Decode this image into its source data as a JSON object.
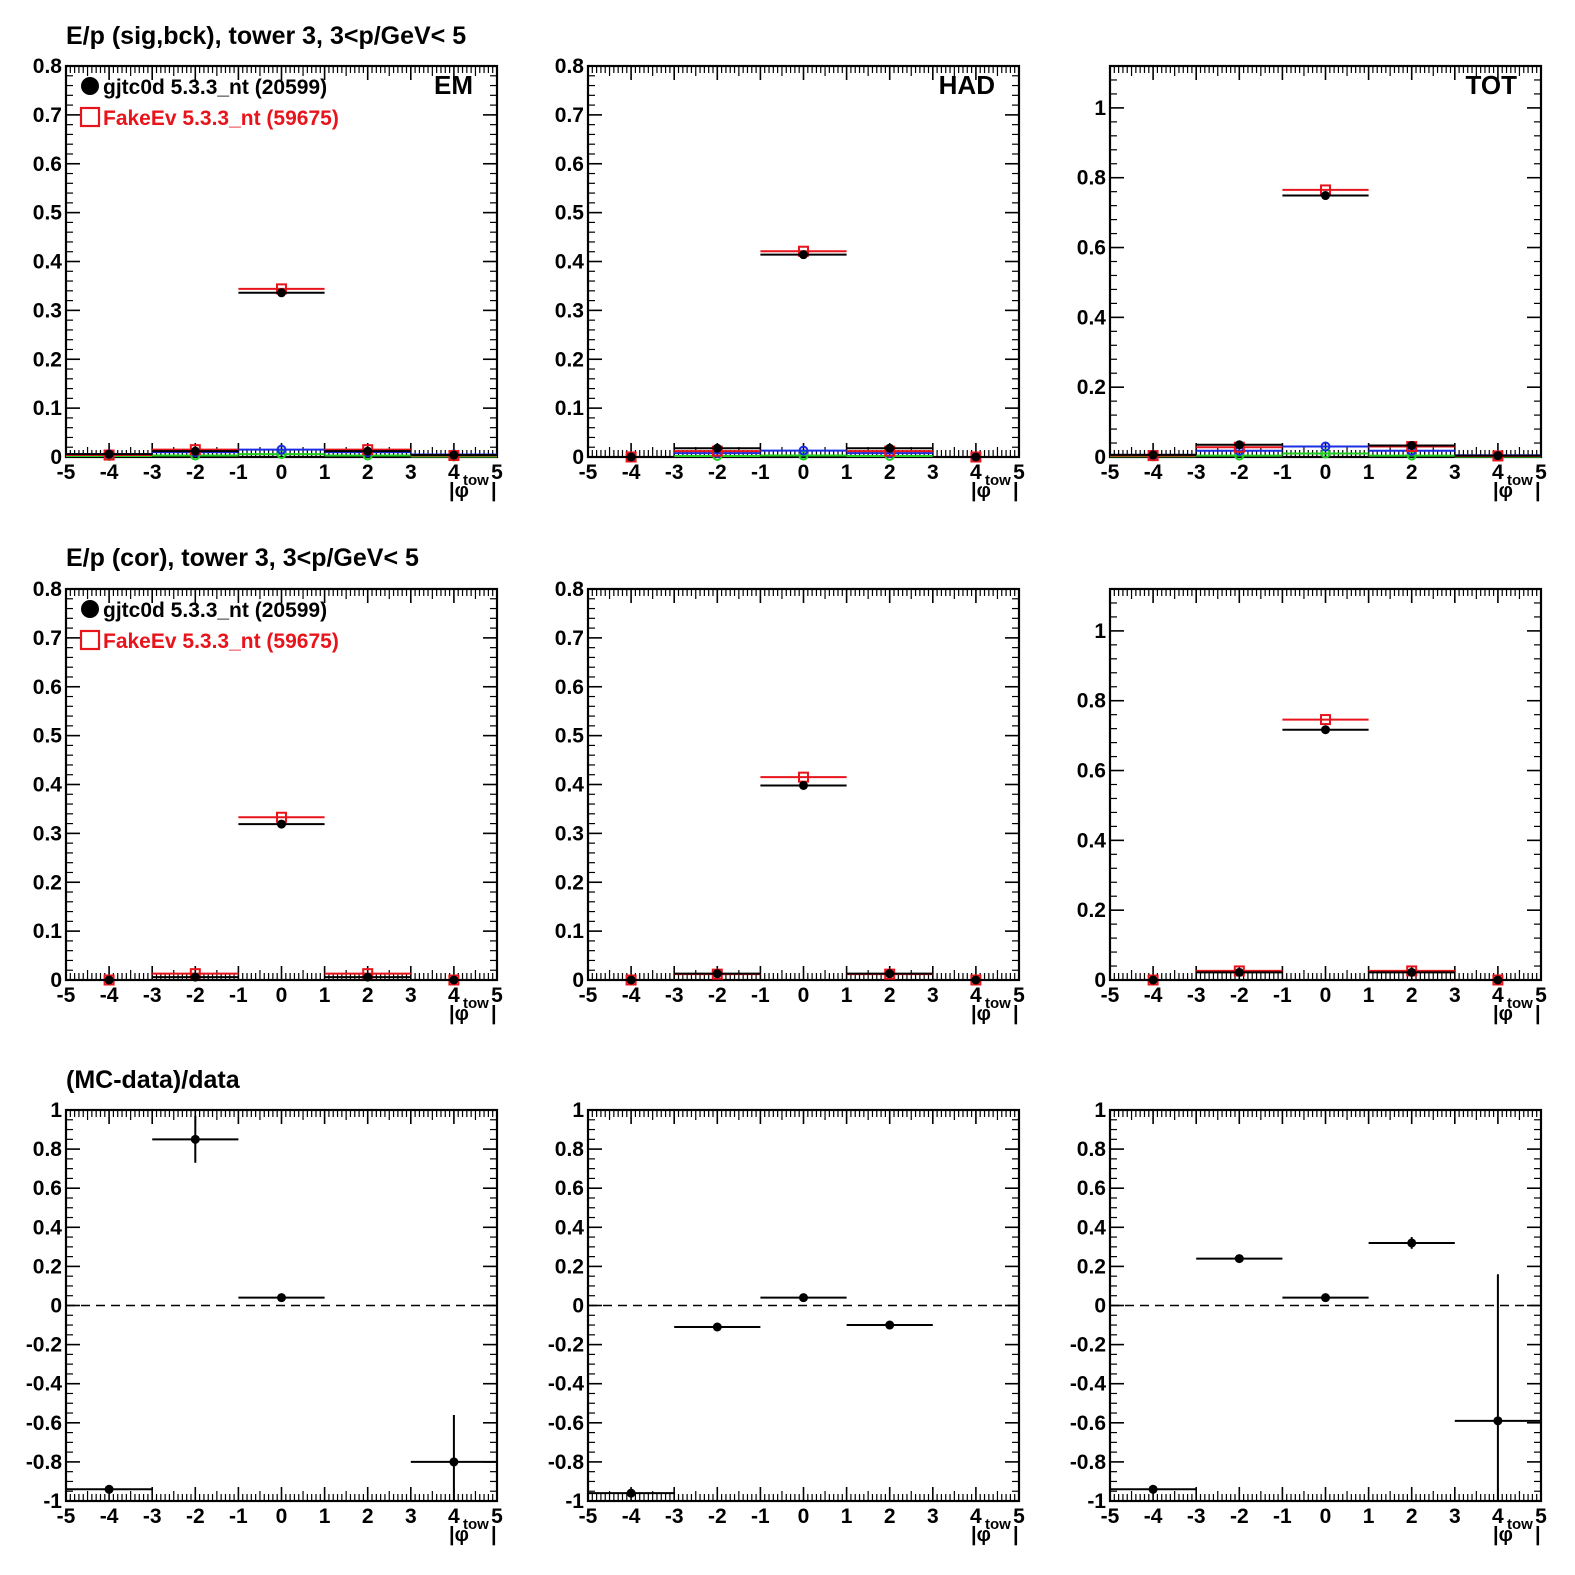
{
  "colors": {
    "data": "#000000",
    "mc": "#e8141b",
    "blue": "#1a2ee6",
    "green": "#20d020"
  },
  "axis_label_main": "|φ",
  "axis_label_sub": "tow",
  "axis_label_end": "|",
  "row_titles": [
    "E/p (sig,bck), tower 3,  3<p/GeV< 5",
    "E/p (cor), tower 3,  3<p/GeV< 5",
    "(MC-data)/data"
  ],
  "legend": [
    {
      "label": "gjtc0d 5.3.3_nt (20599)",
      "marker": "filled-circle"
    },
    {
      "label": "FakeEv 5.3.3_nt (59675)",
      "marker": "open-square"
    }
  ],
  "chart_data": [
    {
      "type": "scatter",
      "row": 0,
      "col": 0,
      "label": "EM",
      "legend": true,
      "xlim": [
        -5,
        5
      ],
      "ylim": [
        0,
        0.8
      ],
      "yticks": [
        "0",
        "0.1",
        "0.2",
        "0.3",
        "0.4",
        "0.5",
        "0.6",
        "0.7",
        "0.8"
      ],
      "xticks": [
        "-5",
        "-4",
        "-3",
        "-2",
        "-1",
        "0",
        "1",
        "2",
        "3",
        "4",
        "5"
      ],
      "bins": [
        [
          -5,
          -3
        ],
        [
          -3,
          -1
        ],
        [
          -1,
          1
        ],
        [
          1,
          3
        ],
        [
          3,
          5
        ]
      ],
      "series": [
        {
          "key": "data",
          "values": [
            0.006,
            0.012,
            0.336,
            0.012,
            0.004
          ]
        },
        {
          "key": "mc",
          "values": [
            0.004,
            0.015,
            0.344,
            0.015,
            0.003
          ]
        },
        {
          "key": "blue",
          "values": [
            0.006,
            0.01,
            0.015,
            0.01,
            0.005
          ]
        },
        {
          "key": "green",
          "values": [
            0.002,
            0.003,
            0.006,
            0.003,
            0.001
          ]
        }
      ]
    },
    {
      "type": "scatter",
      "row": 0,
      "col": 1,
      "label": "HAD",
      "legend": false,
      "xlim": [
        -5,
        5
      ],
      "ylim": [
        0,
        0.8
      ],
      "yticks": [
        "0",
        "0.1",
        "0.2",
        "0.3",
        "0.4",
        "0.5",
        "0.6",
        "0.7",
        "0.8"
      ],
      "xticks": [
        "-5",
        "-4",
        "-3",
        "-2",
        "-1",
        "0",
        "1",
        "2",
        "3",
        "4",
        "5"
      ],
      "bins": [
        [
          -5,
          -3
        ],
        [
          -3,
          -1
        ],
        [
          -1,
          1
        ],
        [
          1,
          3
        ],
        [
          3,
          5
        ]
      ],
      "series": [
        {
          "key": "data",
          "values": [
            0.0,
            0.018,
            0.414,
            0.018,
            0.0
          ]
        },
        {
          "key": "mc",
          "values": [
            0.0,
            0.012,
            0.421,
            0.012,
            0.0
          ]
        },
        {
          "key": "blue",
          "values": [
            0.0,
            0.008,
            0.013,
            0.008,
            0.0
          ]
        },
        {
          "key": "green",
          "values": [
            0.0,
            0.002,
            0.003,
            0.002,
            0.0
          ]
        }
      ]
    },
    {
      "type": "scatter",
      "row": 0,
      "col": 2,
      "label": "TOT",
      "legend": false,
      "xlim": [
        -5,
        5
      ],
      "ylim": [
        0,
        1.12
      ],
      "yticks": [
        "0",
        "0.2",
        "0.4",
        "0.6",
        "0.8",
        "1"
      ],
      "xticks": [
        "-5",
        "-4",
        "-3",
        "-2",
        "-1",
        "0",
        "1",
        "2",
        "3",
        "4",
        "5"
      ],
      "bins": [
        [
          -5,
          -3
        ],
        [
          -3,
          -1
        ],
        [
          -1,
          1
        ],
        [
          1,
          3
        ],
        [
          3,
          5
        ]
      ],
      "series": [
        {
          "key": "data",
          "values": [
            0.006,
            0.035,
            0.749,
            0.033,
            0.004
          ]
        },
        {
          "key": "mc",
          "values": [
            0.004,
            0.028,
            0.765,
            0.03,
            0.003
          ]
        },
        {
          "key": "blue",
          "values": [
            0.006,
            0.018,
            0.03,
            0.018,
            0.005
          ]
        },
        {
          "key": "green",
          "values": [
            0.002,
            0.004,
            0.01,
            0.004,
            0.001
          ]
        }
      ]
    },
    {
      "type": "scatter",
      "row": 1,
      "col": 0,
      "label": "",
      "legend": true,
      "xlim": [
        -5,
        5
      ],
      "ylim": [
        0,
        0.8
      ],
      "yticks": [
        "0",
        "0.1",
        "0.2",
        "0.3",
        "0.4",
        "0.5",
        "0.6",
        "0.7",
        "0.8"
      ],
      "xticks": [
        "-5",
        "-4",
        "-3",
        "-2",
        "-1",
        "0",
        "1",
        "2",
        "3",
        "4",
        "5"
      ],
      "bins": [
        [
          -5,
          -3
        ],
        [
          -3,
          -1
        ],
        [
          -1,
          1
        ],
        [
          1,
          3
        ],
        [
          3,
          5
        ]
      ],
      "series": [
        {
          "key": "data",
          "values": [
            0.0,
            0.006,
            0.319,
            0.006,
            0.0
          ]
        },
        {
          "key": "mc",
          "values": [
            0.0,
            0.013,
            0.333,
            0.013,
            0.0
          ]
        }
      ]
    },
    {
      "type": "scatter",
      "row": 1,
      "col": 1,
      "label": "",
      "legend": false,
      "xlim": [
        -5,
        5
      ],
      "ylim": [
        0,
        0.8
      ],
      "yticks": [
        "0",
        "0.1",
        "0.2",
        "0.3",
        "0.4",
        "0.5",
        "0.6",
        "0.7",
        "0.8"
      ],
      "xticks": [
        "-5",
        "-4",
        "-3",
        "-2",
        "-1",
        "0",
        "1",
        "2",
        "3",
        "4",
        "5"
      ],
      "bins": [
        [
          -5,
          -3
        ],
        [
          -3,
          -1
        ],
        [
          -1,
          1
        ],
        [
          1,
          3
        ],
        [
          3,
          5
        ]
      ],
      "series": [
        {
          "key": "data",
          "values": [
            0.0,
            0.013,
            0.398,
            0.013,
            0.0
          ]
        },
        {
          "key": "mc",
          "values": [
            0.0,
            0.012,
            0.415,
            0.012,
            0.0
          ]
        }
      ]
    },
    {
      "type": "scatter",
      "row": 1,
      "col": 2,
      "label": "",
      "legend": false,
      "xlim": [
        -5,
        5
      ],
      "ylim": [
        0,
        1.12
      ],
      "yticks": [
        "0",
        "0.2",
        "0.4",
        "0.6",
        "0.8",
        "1"
      ],
      "xticks": [
        "-5",
        "-4",
        "-3",
        "-2",
        "-1",
        "0",
        "1",
        "2",
        "3",
        "4",
        "5"
      ],
      "bins": [
        [
          -5,
          -3
        ],
        [
          -3,
          -1
        ],
        [
          -1,
          1
        ],
        [
          1,
          3
        ],
        [
          3,
          5
        ]
      ],
      "series": [
        {
          "key": "data",
          "values": [
            0.0,
            0.022,
            0.717,
            0.022,
            0.0
          ]
        },
        {
          "key": "mc",
          "values": [
            0.0,
            0.026,
            0.746,
            0.026,
            0.0
          ]
        }
      ]
    },
    {
      "type": "scatter",
      "row": 2,
      "col": 0,
      "label": "",
      "legend": false,
      "ratio": true,
      "xlim": [
        -5,
        5
      ],
      "ylim": [
        -1,
        1
      ],
      "yticks": [
        "-1",
        "-0.8",
        "-0.6",
        "-0.4",
        "-0.2",
        "0",
        "0.2",
        "0.4",
        "0.6",
        "0.8",
        "1"
      ],
      "xticks": [
        "-5",
        "-4",
        "-3",
        "-2",
        "-1",
        "0",
        "1",
        "2",
        "3",
        "4",
        "5"
      ],
      "bins": [
        [
          -5,
          -3
        ],
        [
          -3,
          -1
        ],
        [
          -1,
          1
        ],
        [
          1,
          3
        ],
        [
          3,
          5
        ]
      ],
      "series": [
        {
          "key": "data",
          "values": [
            -0.94,
            0.85,
            0.04,
            null,
            -0.8
          ],
          "errors": [
            0.0,
            0.12,
            0.0,
            null,
            0.24
          ]
        }
      ]
    },
    {
      "type": "scatter",
      "row": 2,
      "col": 1,
      "label": "",
      "legend": false,
      "ratio": true,
      "xlim": [
        -5,
        5
      ],
      "ylim": [
        -1,
        1
      ],
      "yticks": [
        "-1",
        "-0.8",
        "-0.6",
        "-0.4",
        "-0.2",
        "0",
        "0.2",
        "0.4",
        "0.6",
        "0.8",
        "1"
      ],
      "xticks": [
        "-5",
        "-4",
        "-3",
        "-2",
        "-1",
        "0",
        "1",
        "2",
        "3",
        "4",
        "5"
      ],
      "bins": [
        [
          -5,
          -3
        ],
        [
          -3,
          -1
        ],
        [
          -1,
          1
        ],
        [
          1,
          3
        ],
        [
          3,
          5
        ]
      ],
      "series": [
        {
          "key": "data",
          "values": [
            -0.96,
            -0.11,
            0.04,
            -0.1,
            null
          ],
          "errors": [
            0.0,
            0.0,
            0.0,
            0.0,
            null
          ]
        }
      ]
    },
    {
      "type": "scatter",
      "row": 2,
      "col": 2,
      "label": "",
      "legend": false,
      "ratio": true,
      "xlim": [
        -5,
        5
      ],
      "ylim": [
        -1,
        1
      ],
      "yticks": [
        "-1",
        "-0.8",
        "-0.6",
        "-0.4",
        "-0.2",
        "0",
        "0.2",
        "0.4",
        "0.6",
        "0.8",
        "1"
      ],
      "xticks": [
        "-5",
        "-4",
        "-3",
        "-2",
        "-1",
        "0",
        "1",
        "2",
        "3",
        "4",
        "5"
      ],
      "bins": [
        [
          -5,
          -3
        ],
        [
          -3,
          -1
        ],
        [
          -1,
          1
        ],
        [
          1,
          3
        ],
        [
          3,
          5
        ]
      ],
      "series": [
        {
          "key": "data",
          "values": [
            -0.94,
            0.24,
            0.04,
            0.32,
            -0.59
          ],
          "errors": [
            0.0,
            0.0,
            0.0,
            0.03,
            0.75
          ]
        }
      ]
    }
  ]
}
